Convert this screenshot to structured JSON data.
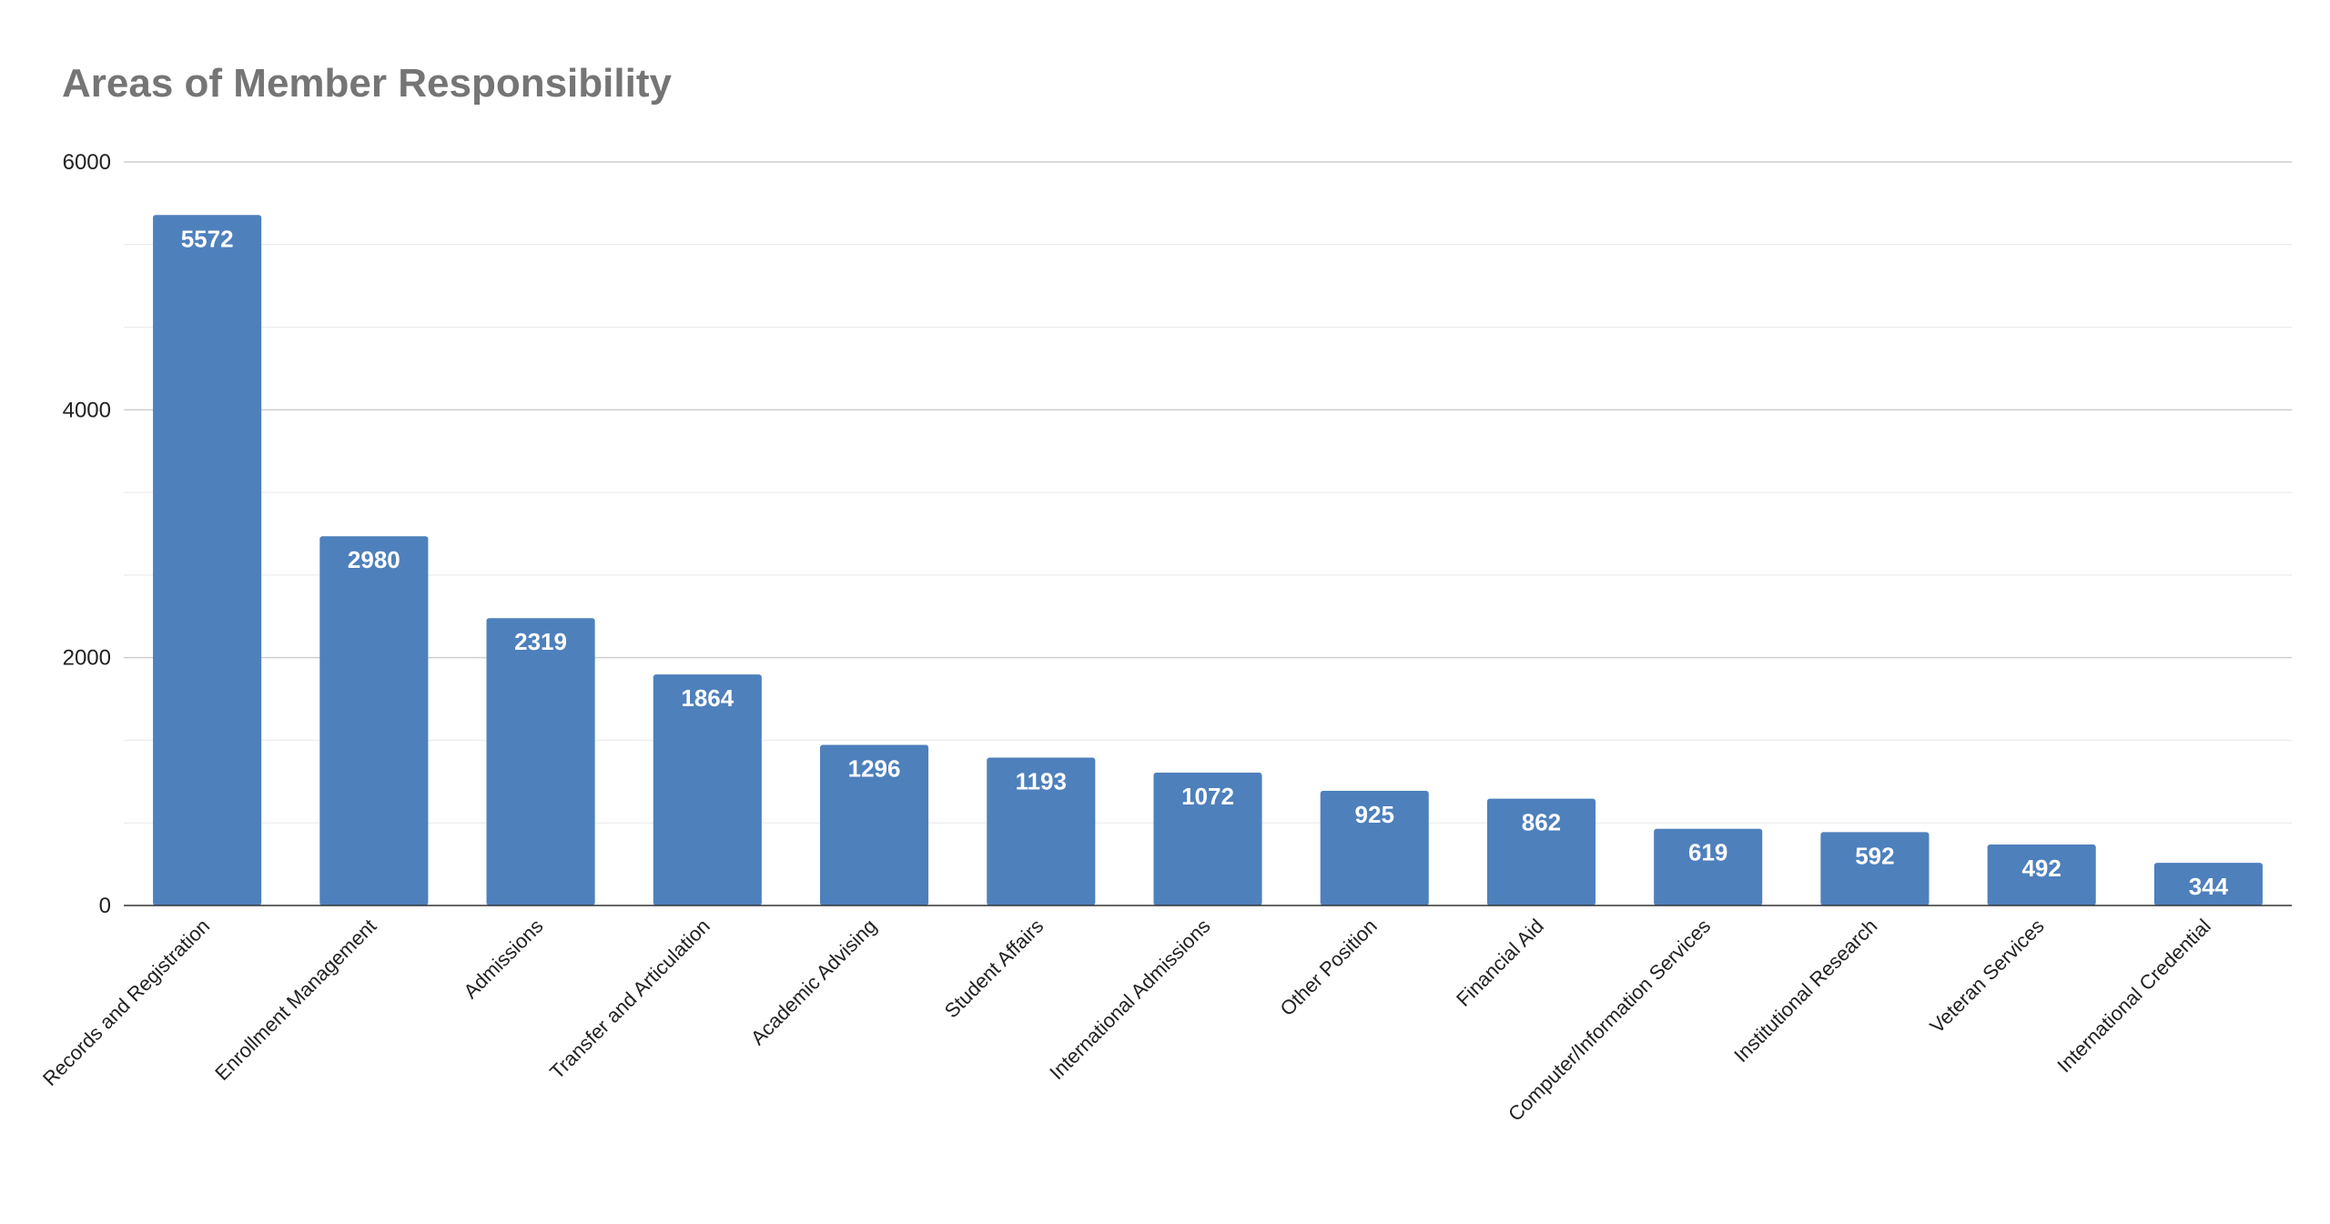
{
  "chart_data": {
    "type": "bar",
    "title": "Areas of Member Responsibility",
    "xlabel": "",
    "ylabel": "",
    "ylim": [
      0,
      6000
    ],
    "y_ticks": [
      "0",
      "2000",
      "4000",
      "6000"
    ],
    "y_tick_values": [
      0,
      2000,
      4000,
      6000
    ],
    "minor_gridlines": true,
    "legend": "none",
    "bar_color": "#4e80bc",
    "categories": [
      "Records and Registration",
      "Enrollment Management",
      "Admissions",
      "Transfer and Articulation",
      "Academic Advising",
      "Student Affairs",
      "International Admissions",
      "Other Position",
      "Financial Aid",
      "Computer/Information Services",
      "Institutional Research",
      "Veteran Services",
      "International Credential"
    ],
    "values": [
      5572,
      2980,
      2319,
      1864,
      1296,
      1193,
      1072,
      925,
      862,
      619,
      592,
      492,
      344
    ],
    "data_labels": [
      "5572",
      "2980",
      "2319",
      "1864",
      "1296",
      "1193",
      "1072",
      "925",
      "862",
      "619",
      "592",
      "492",
      "344"
    ]
  }
}
